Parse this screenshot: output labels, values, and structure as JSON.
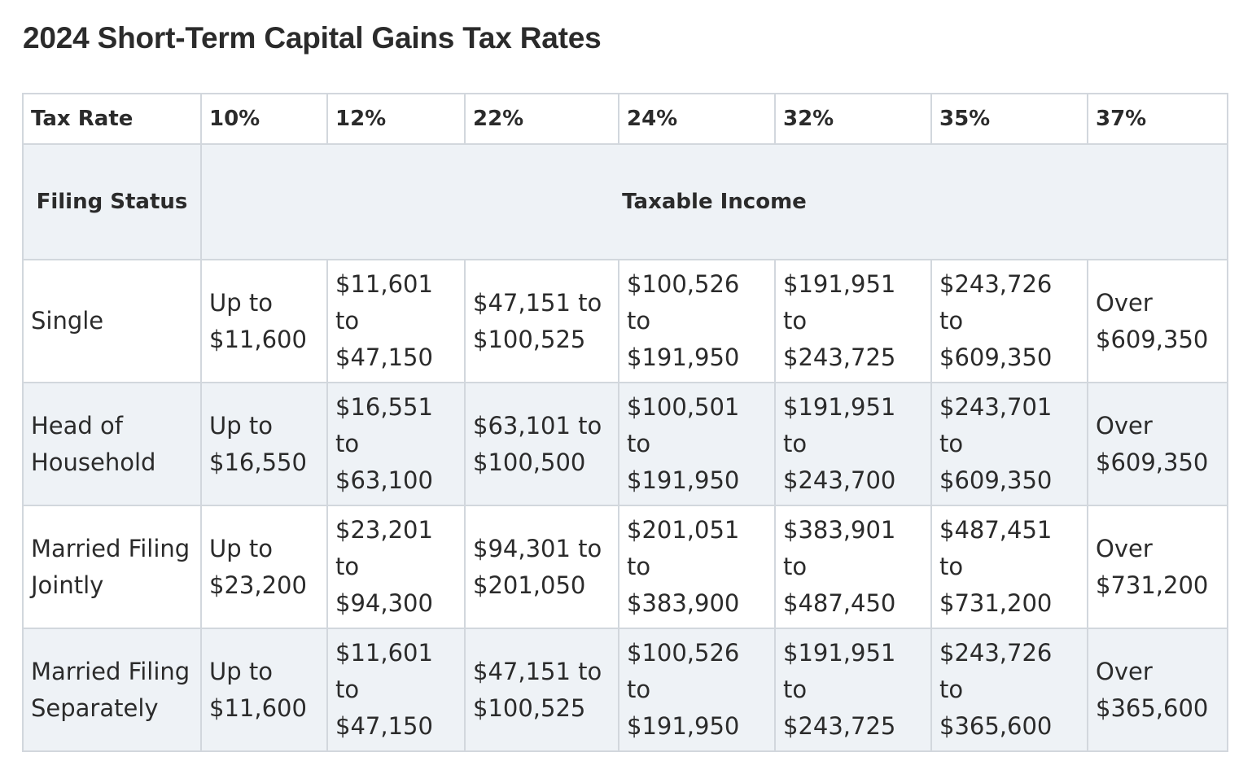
{
  "title": "2024 Short-Term Capital Gains Tax Rates",
  "table": {
    "header": [
      "Tax Rate",
      "10%",
      "12%",
      "22%",
      "24%",
      "32%",
      "35%",
      "37%"
    ],
    "subheader": {
      "filing_status": "Filing Status",
      "taxable_income": "Taxable Income"
    },
    "rows": [
      {
        "status": "Single",
        "cells": [
          "Up to $11,600",
          "$11,601 to $47,150",
          "$47,151 to $100,525",
          "$100,526 to $191,950",
          "$191,951 to $243,725",
          "$243,726 to $609,350",
          "Over $609,350"
        ]
      },
      {
        "status": "Head of Household",
        "cells": [
          "Up to $16,550",
          "$16,551 to $63,100",
          "$63,101 to $100,500",
          "$100,501 to $191,950",
          "$191,951 to $243,700",
          "$243,701 to $609,350",
          "Over $609,350"
        ]
      },
      {
        "status": "Married Filing Jointly",
        "cells": [
          "Up to $23,200",
          "$23,201 to $94,300",
          "$94,301 to $201,050",
          "$201,051 to $383,900",
          "$383,901 to $487,450",
          "$487,451 to $731,200",
          "Over $731,200"
        ]
      },
      {
        "status": "Married Filing Separately",
        "cells": [
          "Up to $11,600",
          "$11,601 to $47,150",
          "$47,151 to $100,525",
          "$100,526 to $191,950",
          "$191,951 to $243,725",
          "$243,726 to $365,600",
          "Over $365,600"
        ]
      }
    ]
  },
  "colors": {
    "text": "#2b2b2b",
    "border": "#d2d7dd",
    "shaded_row": "#eef2f6",
    "background": "#ffffff"
  }
}
